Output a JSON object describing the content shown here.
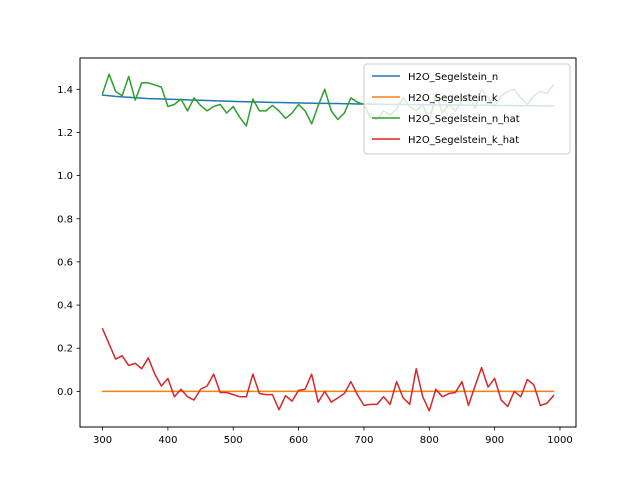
{
  "chart_data": {
    "type": "line",
    "title": "",
    "xlabel": "",
    "ylabel": "",
    "xlim": [
      265.5,
      1024.5
    ],
    "ylim": [
      -0.165,
      1.545
    ],
    "xticks": [
      300,
      400,
      500,
      600,
      700,
      800,
      900,
      1000
    ],
    "yticks": [
      0.0,
      0.2,
      0.4,
      0.6,
      0.8,
      1.0,
      1.2,
      1.4
    ],
    "xtick_labels": [
      "300",
      "400",
      "500",
      "600",
      "700",
      "800",
      "900",
      "1000"
    ],
    "ytick_labels": [
      "0.0",
      "0.2",
      "0.4",
      "0.6",
      "0.8",
      "1.0",
      "1.2",
      "1.4"
    ],
    "grid": false,
    "legend_position": "top-right",
    "x": [
      300,
      310,
      320,
      330,
      340,
      350,
      360,
      370,
      380,
      390,
      400,
      410,
      420,
      430,
      440,
      450,
      460,
      470,
      480,
      490,
      500,
      510,
      520,
      530,
      540,
      550,
      560,
      570,
      580,
      590,
      600,
      610,
      620,
      630,
      640,
      650,
      660,
      670,
      680,
      690,
      700,
      710,
      720,
      730,
      740,
      750,
      760,
      770,
      780,
      790,
      800,
      810,
      820,
      830,
      840,
      850,
      860,
      870,
      880,
      890,
      900,
      910,
      920,
      930,
      940,
      950,
      960,
      970,
      980,
      990
    ],
    "series": [
      {
        "name": "H2O_Segelstein_n",
        "color": "#1f77b4",
        "values": [
          1.373,
          1.37,
          1.367,
          1.365,
          1.363,
          1.361,
          1.359,
          1.357,
          1.356,
          1.355,
          1.354,
          1.353,
          1.352,
          1.351,
          1.35,
          1.349,
          1.348,
          1.347,
          1.346,
          1.345,
          1.344,
          1.343,
          1.342,
          1.341,
          1.341,
          1.34,
          1.339,
          1.339,
          1.338,
          1.337,
          1.337,
          1.336,
          1.336,
          1.335,
          1.335,
          1.334,
          1.334,
          1.333,
          1.333,
          1.332,
          1.332,
          1.331,
          1.331,
          1.331,
          1.33,
          1.33,
          1.33,
          1.329,
          1.329,
          1.329,
          1.328,
          1.328,
          1.328,
          1.327,
          1.327,
          1.327,
          1.326,
          1.326,
          1.326,
          1.326,
          1.325,
          1.325,
          1.325,
          1.324,
          1.324,
          1.324,
          1.324,
          1.323,
          1.323,
          1.323
        ]
      },
      {
        "name": "H2O_Segelstein_k",
        "color": "#ff7f0e",
        "values": [
          0,
          0,
          0,
          0,
          0,
          0,
          0,
          0,
          0,
          0,
          0,
          0,
          0,
          0,
          0,
          0,
          0,
          0,
          0,
          0,
          0,
          0,
          0,
          0,
          0,
          0,
          0,
          0,
          0,
          0,
          0,
          0,
          0,
          0,
          0,
          0,
          0,
          0,
          0,
          0,
          0,
          0,
          0,
          0,
          0,
          0,
          0,
          0,
          0,
          0,
          0,
          0,
          0,
          0,
          0,
          0,
          0,
          0,
          0,
          0,
          0,
          0,
          0,
          0,
          0,
          0,
          0,
          0,
          0,
          0
        ]
      },
      {
        "name": "H2O_Segelstein_n_hat",
        "color": "#2ca02c",
        "values": [
          1.38,
          1.47,
          1.39,
          1.37,
          1.46,
          1.35,
          1.43,
          1.43,
          1.42,
          1.41,
          1.32,
          1.33,
          1.355,
          1.3,
          1.36,
          1.325,
          1.3,
          1.32,
          1.33,
          1.29,
          1.32,
          1.27,
          1.23,
          1.355,
          1.3,
          1.3,
          1.325,
          1.3,
          1.265,
          1.29,
          1.33,
          1.3,
          1.24,
          1.325,
          1.4,
          1.3,
          1.26,
          1.29,
          1.36,
          1.34,
          1.33,
          1.27,
          1.26,
          1.3,
          1.28,
          1.31,
          1.36,
          1.32,
          1.3,
          1.33,
          1.25,
          1.38,
          1.29,
          1.33,
          1.3,
          1.35,
          1.38,
          1.31,
          1.4,
          1.36,
          1.32,
          1.37,
          1.39,
          1.4,
          1.36,
          1.33,
          1.37,
          1.39,
          1.38,
          1.42
        ]
      },
      {
        "name": "H2O_Segelstein_k_hat",
        "color": "#d62728",
        "values": [
          0.29,
          0.22,
          0.15,
          0.165,
          0.12,
          0.13,
          0.105,
          0.155,
          0.08,
          0.025,
          0.06,
          -0.025,
          0.01,
          -0.025,
          -0.04,
          0.01,
          0.025,
          0.08,
          -0.005,
          -0.005,
          -0.015,
          -0.025,
          -0.025,
          0.08,
          -0.01,
          -0.015,
          -0.015,
          -0.085,
          -0.02,
          -0.045,
          0.005,
          0.01,
          0.08,
          -0.05,
          0.0,
          -0.05,
          -0.03,
          -0.01,
          0.045,
          -0.015,
          -0.065,
          -0.06,
          -0.06,
          -0.025,
          -0.06,
          0.045,
          -0.03,
          -0.06,
          0.105,
          -0.025,
          -0.09,
          0.01,
          -0.025,
          -0.01,
          -0.005,
          0.045,
          -0.065,
          0.025,
          0.11,
          0.02,
          0.06,
          -0.04,
          -0.07,
          0.0,
          -0.025,
          0.055,
          0.03,
          -0.065,
          -0.055,
          -0.02
        ]
      }
    ]
  }
}
